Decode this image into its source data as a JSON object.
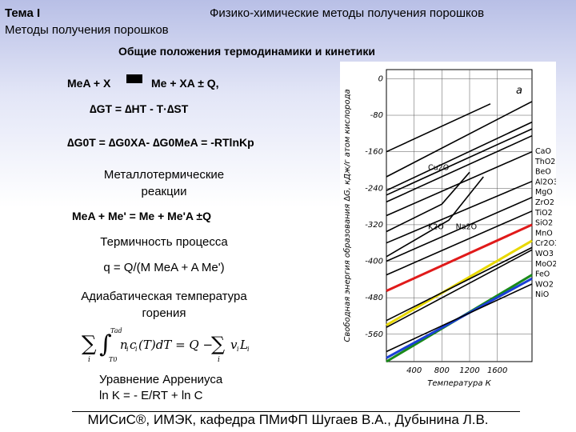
{
  "header": {
    "topic": "Тема I",
    "title": "Физико-химические методы получения порошков",
    "subtitle": "Методы получения порошков",
    "section_heading": "Общие положения термодинамики и кинетики"
  },
  "content": {
    "reaction_left": "MeA + X",
    "reaction_right": "Me + XA ± Q,",
    "gibbs_equation": "∆GT = ∆HT - T·∆ST",
    "standard_gibbs": "∆G0T = ∆G0XA- ∆G0MeA = -RTlnKp",
    "metallothermic_heading": "Металлотермические реакции",
    "metallothermic_reaction": "MeA + Me' = Me + Me'A ±Q",
    "thermicity_heading": "Термичность процесса",
    "thermicity_formula": "q = Q/(M MeA + A Me')",
    "adiabatic_heading": "Адиабатическая температура горения",
    "arrhenius_heading": "Уравнение Аррениуса",
    "arrhenius_formula": "ln K = - E/RT + ln C"
  },
  "footer": {
    "text": "МИСиС®, ИМЭК, кафедра ПМиФП Шугаев В.А., Дубынина Л.В."
  },
  "chart_data": {
    "type": "line",
    "panel_label": "а",
    "ylabel": "Свободная энергия образования ∆G, кДж/г атом кислорода",
    "xlabel": "Температура К",
    "x_ticks": [
      400,
      800,
      1200,
      1600
    ],
    "y_ticks": [
      -560,
      -480,
      -400,
      -320,
      -240,
      -160,
      -80,
      0
    ],
    "xlim": [
      0,
      2100
    ],
    "ylim": [
      -620,
      20
    ],
    "colors": {
      "green": "#1a8a1a",
      "blue": "#1a3fd6",
      "yellow": "#e8d800",
      "red": "#e01a1a",
      "black": "#000000"
    },
    "series": [
      {
        "name": "CaO",
        "color": "green",
        "values": [
          [
            0,
            -620
          ],
          [
            2100,
            -430
          ]
        ]
      },
      {
        "name": "ThO2",
        "color": "blue",
        "values": [
          [
            0,
            -612
          ],
          [
            2100,
            -438
          ]
        ]
      },
      {
        "name": "BeO",
        "color": "black",
        "values": [
          [
            0,
            -598
          ],
          [
            2100,
            -450
          ]
        ]
      },
      {
        "name": "Al2O3",
        "color": "black",
        "values": [
          [
            0,
            -545
          ],
          [
            2100,
            -375
          ]
        ]
      },
      {
        "name": "MgO",
        "color": "yellow",
        "values": [
          [
            0,
            -540
          ],
          [
            2100,
            -355
          ]
        ]
      },
      {
        "name": "ZrO2",
        "color": "black",
        "values": [
          [
            0,
            -530
          ],
          [
            2100,
            -370
          ]
        ]
      },
      {
        "name": "TiO2",
        "color": "red",
        "values": [
          [
            0,
            -465
          ],
          [
            2100,
            -320
          ]
        ]
      },
      {
        "name": "SiO2",
        "color": "black",
        "values": [
          [
            0,
            -430
          ],
          [
            2100,
            -290
          ]
        ]
      },
      {
        "name": "MnO",
        "color": "black",
        "values": [
          [
            0,
            -400
          ],
          [
            2100,
            -260
          ]
        ]
      },
      {
        "name": "Cr2O3",
        "color": "black",
        "values": [
          [
            0,
            -360
          ],
          [
            2100,
            -225
          ]
        ]
      },
      {
        "name": "WO3",
        "color": "black",
        "values": [
          [
            0,
            -300
          ],
          [
            2100,
            -160
          ]
        ]
      },
      {
        "name": "MoO2",
        "color": "black",
        "values": [
          [
            0,
            -270
          ],
          [
            2100,
            -125
          ]
        ]
      },
      {
        "name": "FeO",
        "color": "black",
        "values": [
          [
            0,
            -255
          ],
          [
            2100,
            -110
          ]
        ]
      },
      {
        "name": "WO2",
        "color": "black",
        "values": [
          [
            0,
            -245
          ],
          [
            2100,
            -95
          ]
        ]
      },
      {
        "name": "NiO",
        "color": "black",
        "values": [
          [
            0,
            -215
          ],
          [
            2100,
            -50
          ]
        ]
      },
      {
        "name": "Na2O",
        "color": "black",
        "values": [
          [
            0,
            -390
          ],
          [
            900,
            -310
          ],
          [
            1400,
            -215
          ]
        ]
      },
      {
        "name": "K2O",
        "color": "black",
        "values": [
          [
            0,
            -335
          ],
          [
            800,
            -275
          ],
          [
            1200,
            -205
          ]
        ]
      },
      {
        "name": "Cu2O",
        "color": "black",
        "values": [
          [
            0,
            -160
          ],
          [
            1500,
            -55
          ]
        ]
      }
    ]
  }
}
